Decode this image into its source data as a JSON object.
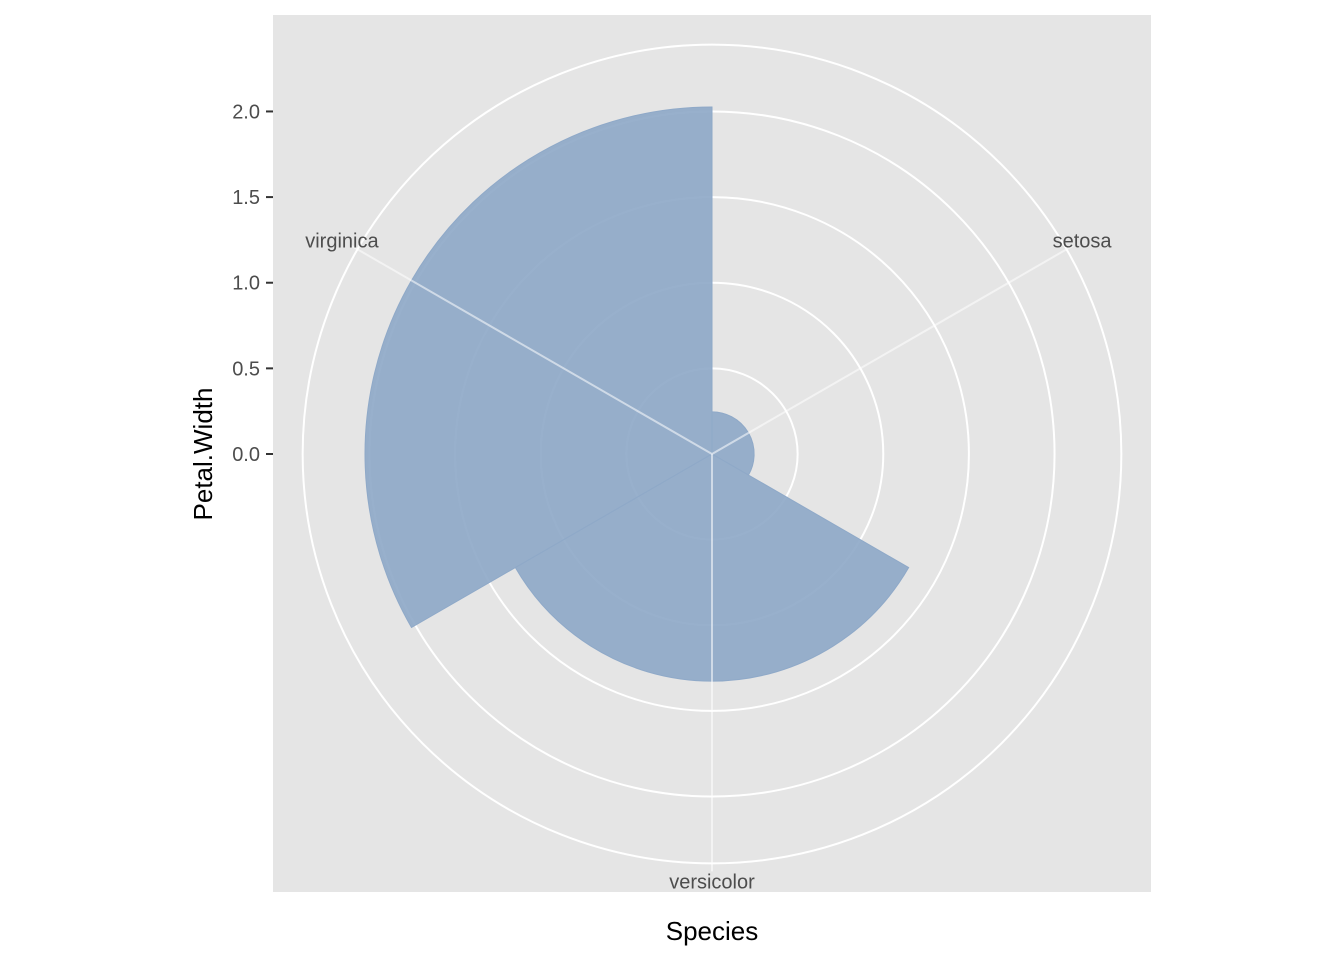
{
  "chart_data": {
    "type": "bar",
    "coord": "polar",
    "xlabel": "Species",
    "ylabel": "Petal.Width",
    "categories": [
      "setosa",
      "versicolor",
      "virginica"
    ],
    "values": [
      0.246,
      1.326,
      2.026
    ],
    "ylim": [
      0,
      2.026
    ],
    "yticks": [
      "0.0",
      "0.5",
      "1.0",
      "1.5",
      "2.0"
    ],
    "grid": true,
    "bar_color": "#8FA9C8",
    "panel_color": "#E5E5E5",
    "grid_color": "#FFFFFF"
  }
}
